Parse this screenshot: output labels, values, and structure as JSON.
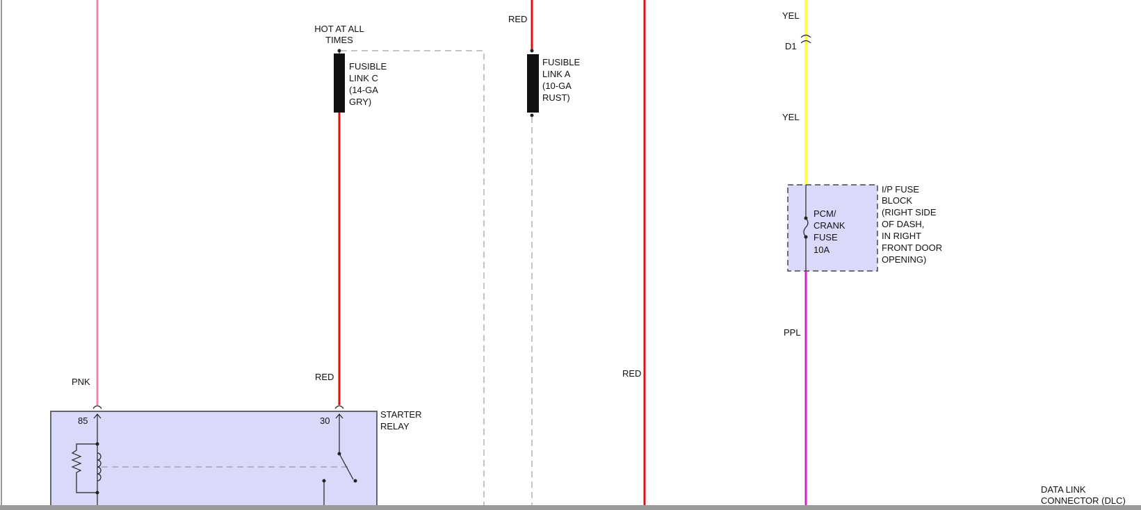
{
  "colors": {
    "pink_wire": "#ee88aa",
    "red_wire": "#dd1111",
    "yellow_wire": "#ffff44",
    "purple_wire": "#cc22cc",
    "component_fill": "#d9dafa"
  },
  "wires": {
    "pnk": "PNK",
    "red_relay": "RED",
    "red_link_a": "RED",
    "red_main": "RED",
    "yel_top": "YEL",
    "yel_mid": "YEL",
    "ppl": "PPL"
  },
  "hot_at_all_times": [
    "HOT AT ALL",
    "TIMES"
  ],
  "fusible_link_c": [
    "FUSIBLE",
    "LINK C",
    "(14-GA",
    "GRY)"
  ],
  "fusible_link_a": [
    "FUSIBLE",
    "LINK A",
    "(10-GA",
    "RUST)"
  ],
  "connector_d1": "D1",
  "fuse": [
    "PCM/",
    "CRANK",
    "FUSE",
    "10A"
  ],
  "fuse_block": [
    "I/P FUSE",
    "BLOCK",
    "(RIGHT SIDE",
    "OF DASH,",
    "IN RIGHT",
    "FRONT DOOR",
    "OPENING)"
  ],
  "starter_relay": {
    "label": [
      "STARTER",
      "RELAY"
    ],
    "pin_85": "85",
    "pin_30": "30"
  },
  "dlc": [
    "DATA LINK",
    "CONNECTOR (DLC)"
  ]
}
